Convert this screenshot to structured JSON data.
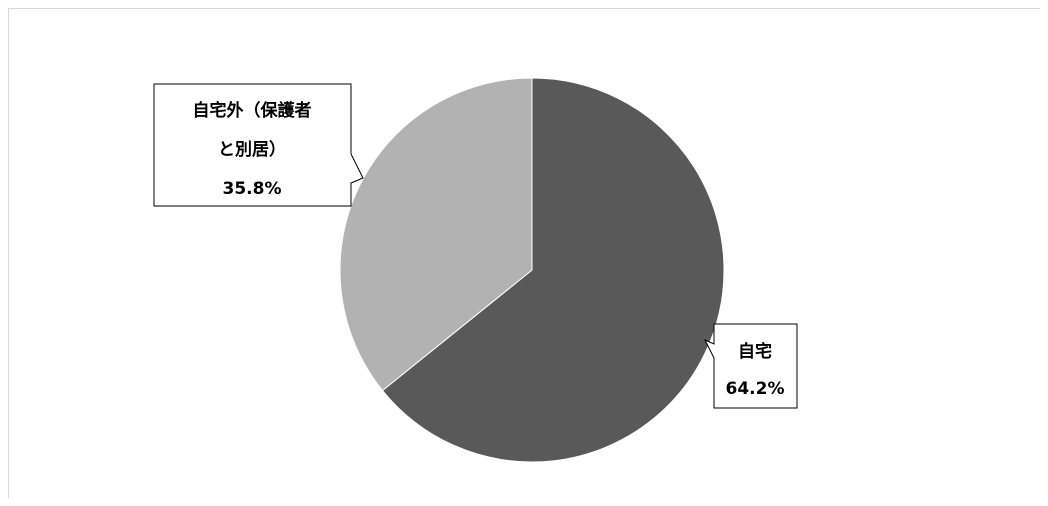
{
  "chart_data": {
    "type": "pie",
    "title": "",
    "slices": [
      {
        "label_lines": [
          "自宅"
        ],
        "value": 64.2,
        "value_label": "64.2%",
        "color": "#595959"
      },
      {
        "label_lines": [
          "自宅外（保護者",
          "と別居）"
        ],
        "value": 35.8,
        "value_label": "35.8%",
        "color": "#b2b2b2"
      }
    ],
    "start_angle": "12 o'clock",
    "direction": "clockwise",
    "legend": "none"
  }
}
